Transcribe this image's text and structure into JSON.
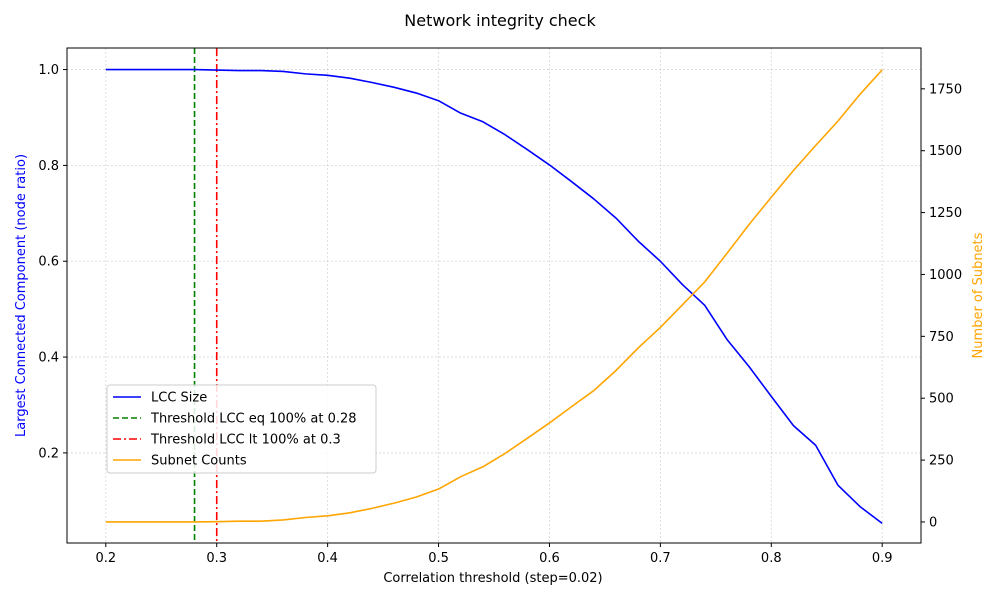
{
  "chart_data": {
    "type": "line",
    "title": "Network integrity check",
    "xlabel": "Correlation threshold (step=0.02)",
    "ylabel_left": "Largest Connected Component (node ratio)",
    "ylabel_right": "Number of Subnets",
    "xlim": [
      0.165,
      0.935
    ],
    "ylim_left": [
      0.012,
      1.045
    ],
    "ylim_right": [
      -85,
      1915
    ],
    "x_ticks": [
      0.2,
      0.3,
      0.4,
      0.5,
      0.6,
      0.7,
      0.8,
      0.9
    ],
    "x_tick_labels": [
      "0.2",
      "0.3",
      "0.4",
      "0.5",
      "0.6",
      "0.7",
      "0.8",
      "0.9"
    ],
    "y_left_ticks": [
      0.2,
      0.4,
      0.6,
      0.8,
      1.0
    ],
    "y_left_tick_labels": [
      "0.2",
      "0.4",
      "0.6",
      "0.8",
      "1.0"
    ],
    "y_right_ticks": [
      0,
      250,
      500,
      750,
      1000,
      1250,
      1500,
      1750
    ],
    "y_right_tick_labels": [
      "0",
      "250",
      "500",
      "750",
      "1000",
      "1250",
      "1500",
      "1750"
    ],
    "grid": true,
    "legend_position": "lower-left",
    "colors": {
      "lcc": "#0000ff",
      "subnets": "#ffa500",
      "threshold_eq": "#008000",
      "threshold_lt": "#ff0000",
      "left_label": "#0000ff",
      "right_label": "#ffa500"
    },
    "x": [
      0.2,
      0.22,
      0.24,
      0.26,
      0.28,
      0.3,
      0.32,
      0.34,
      0.36,
      0.38,
      0.4,
      0.42,
      0.44,
      0.46,
      0.48,
      0.5,
      0.52,
      0.54,
      0.56,
      0.58,
      0.6,
      0.62,
      0.64,
      0.66,
      0.68,
      0.7,
      0.72,
      0.74,
      0.76,
      0.78,
      0.8,
      0.82,
      0.84,
      0.86,
      0.88,
      0.9
    ],
    "series": [
      {
        "name": "LCC Size",
        "axis": "left",
        "style": "solid",
        "values": [
          1.0,
          1.0,
          1.0,
          1.0,
          1.0,
          0.999,
          0.998,
          0.998,
          0.996,
          0.991,
          0.988,
          0.982,
          0.973,
          0.963,
          0.951,
          0.935,
          0.909,
          0.891,
          0.864,
          0.833,
          0.801,
          0.766,
          0.73,
          0.69,
          0.642,
          0.6,
          0.551,
          0.508,
          0.437,
          0.38,
          0.318,
          0.257,
          0.216,
          0.133,
          0.088,
          0.053
        ]
      },
      {
        "name": "Subnet Counts",
        "axis": "right",
        "style": "solid",
        "values": [
          0,
          0,
          0,
          0,
          0,
          1,
          3,
          3,
          8,
          18,
          25,
          37,
          55,
          76,
          101,
          133,
          183,
          223,
          277,
          338,
          400,
          466,
          531,
          612,
          703,
          786,
          878,
          970,
          1085,
          1202,
          1312,
          1420,
          1521,
          1619,
          1728,
          1827
        ]
      }
    ],
    "thresholds": [
      {
        "name": "Threshold LCC eq 100% at 0.28",
        "x": 0.28,
        "style": "dashed"
      },
      {
        "name": "Threshold LCC lt 100% at 0.3",
        "x": 0.3,
        "style": "dashdot"
      }
    ],
    "legend": [
      "LCC Size",
      "Threshold LCC eq 100% at 0.28",
      "Threshold LCC lt 100% at 0.3",
      "Subnet Counts"
    ]
  }
}
